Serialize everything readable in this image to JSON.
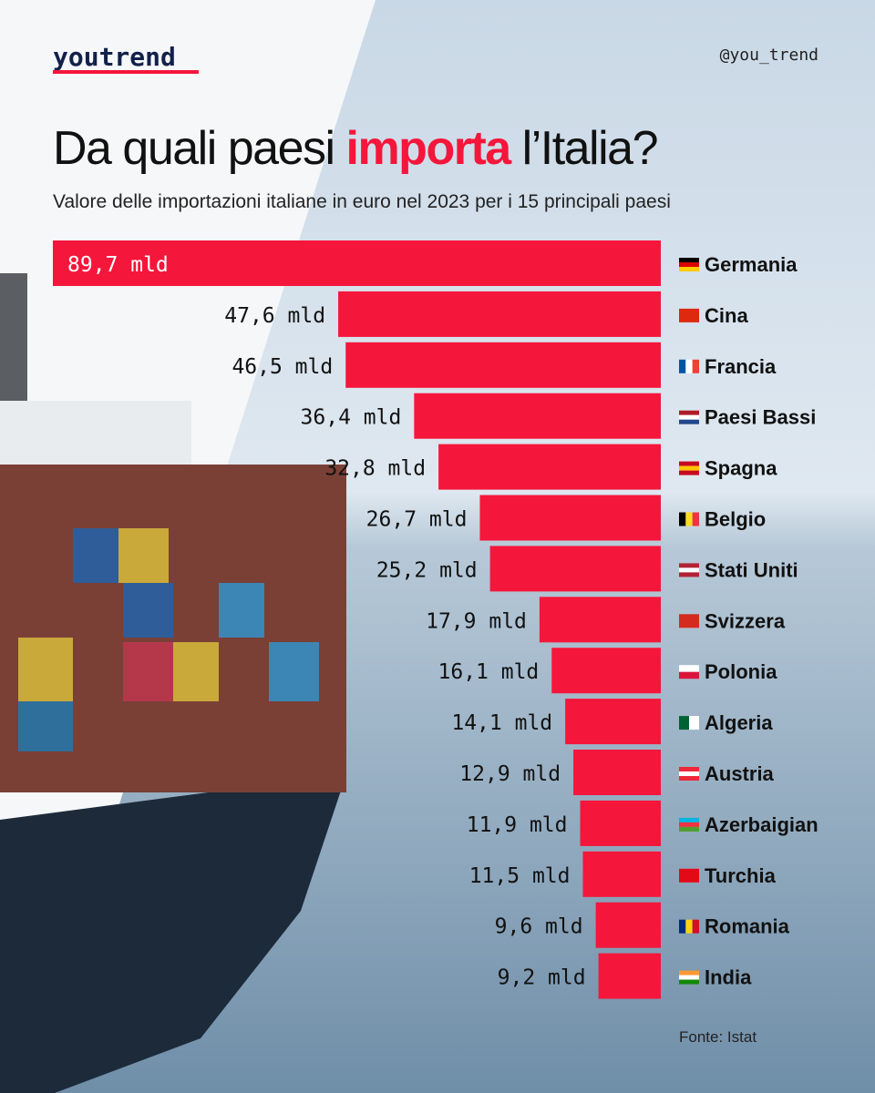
{
  "brand": "youtrend",
  "handle": "@you_trend",
  "chart_data": {
    "type": "bar",
    "orientation": "horizontal",
    "title": [
      "Da quali paesi ",
      "importa",
      " l’Italia?"
    ],
    "subtitle": "Valore delle importazioni italiane in euro nel 2023 per i 15 principali paesi",
    "categories": [
      "Germania",
      "Cina",
      "Francia",
      "Paesi Bassi",
      "Spagna",
      "Belgio",
      "Stati Uniti",
      "Svizzera",
      "Polonia",
      "Algeria",
      "Austria",
      "Azerbaigian",
      "Turchia",
      "Romania",
      "India"
    ],
    "values": [
      89.7,
      47.6,
      46.5,
      36.4,
      32.8,
      26.7,
      25.2,
      17.9,
      16.1,
      14.1,
      12.9,
      11.9,
      11.5,
      9.6,
      9.2
    ],
    "value_labels": [
      "89,7 mld",
      "47,6 mld",
      "46,5 mld",
      "36,4 mld",
      "32,8 mld",
      "26,7 mld",
      "25,2 mld",
      "17,9 mld",
      "16,1 mld",
      "14,1 mld",
      "12,9 mld",
      "11,9 mld",
      "11,5 mld",
      "9,6 mld",
      "9,2 mld"
    ],
    "color": "#f5163b",
    "source": "Fonte: Istat"
  }
}
